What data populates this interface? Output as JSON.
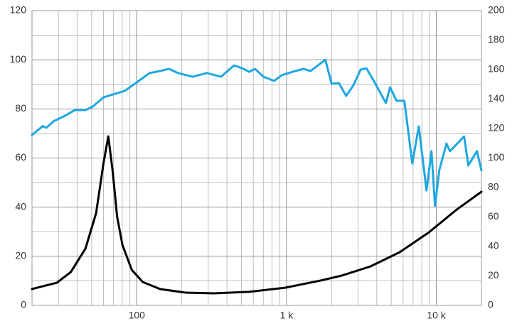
{
  "chart_data": {
    "type": "line",
    "xlog": true,
    "grid": true,
    "xlim": [
      20,
      20000
    ],
    "xticks": [
      100,
      {
        "value": 1000,
        "label": "1 k"
      },
      {
        "value": 10000,
        "label": "10 k"
      }
    ],
    "ylim": [
      0,
      120
    ],
    "yticks": [
      0,
      20,
      40,
      60,
      80,
      100,
      120
    ],
    "y2lim": [
      0,
      200
    ],
    "y2ticks": [
      0,
      20,
      40,
      60,
      80,
      100,
      120,
      140,
      160,
      180,
      200
    ],
    "series": [
      {
        "color": "#1ea7e1",
        "x": [
          20,
          23.6,
          24.9,
          27.9,
          32.7,
          38.6,
          45.5,
          51,
          60,
          70.4,
          83,
          100,
          122,
          143,
          164,
          189,
          236,
          293,
          366,
          446,
          508,
          564,
          616,
          702,
          826,
          928,
          1099,
          1297,
          1445,
          1668,
          1815,
          2001,
          2237,
          2500,
          2796,
          3125,
          3414,
          3898,
          4603,
          4911,
          5425,
          6116,
          6912,
          7635,
          8600,
          9276,
          9800,
          10460,
          11680,
          12330,
          15330,
          16350,
          18650,
          20000
        ],
        "values": [
          69.4,
          73,
          72.3,
          75,
          77,
          79.5,
          79.5,
          81,
          84.7,
          86,
          87.3,
          90.8,
          94.6,
          95.4,
          96.3,
          94.6,
          93.1,
          94.6,
          93.1,
          97.7,
          96.5,
          95.1,
          96.3,
          93.1,
          91.4,
          93.7,
          95.1,
          96.3,
          95.4,
          98.3,
          100,
          90.2,
          90.5,
          85.3,
          89.6,
          96,
          96.5,
          90.5,
          82.4,
          88.8,
          83.3,
          83.3,
          57.8,
          72.9,
          46.8,
          62.8,
          40.5,
          55,
          65.9,
          62.8,
          68.8,
          57,
          62.8,
          55
        ]
      },
      {
        "color": "#000000",
        "axis": "y2",
        "x": [
          20,
          29.3,
          36.3,
          45.5,
          53.6,
          60,
          64.6,
          69,
          74,
          80.3,
          92.7,
          109.6,
          143.3,
          210.7,
          327,
          564,
          978,
          1692,
          2332,
          3640,
          5690,
          8820,
          13700,
          20000
        ],
        "values": [
          11.1,
          15.4,
          22.6,
          38.6,
          62.7,
          96.4,
          114.7,
          91.6,
          60.2,
          41,
          24.1,
          15.9,
          11.1,
          8.7,
          8.2,
          9.2,
          12,
          16.9,
          20.2,
          26.5,
          36.1,
          49.2,
          65.1,
          77.1
        ]
      }
    ]
  }
}
